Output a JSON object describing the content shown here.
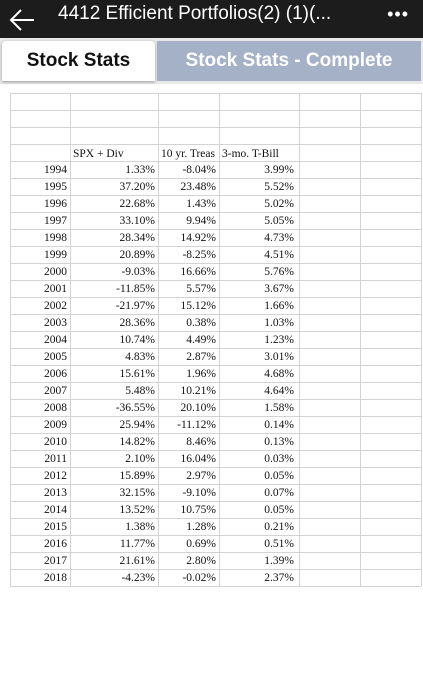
{
  "header": {
    "title": "4412 Efficient Portfolios(2) (1)(...",
    "menu": "•••"
  },
  "tabs": [
    "Stock Stats",
    "Stock Stats - Complete"
  ],
  "table": {
    "columns": [
      "SPX + Div",
      "10 yr. Treas",
      "3-mo. T-Bill"
    ],
    "rows": [
      [
        "1994",
        "1.33%",
        "-8.04%",
        "3.99%"
      ],
      [
        "1995",
        "37.20%",
        "23.48%",
        "5.52%"
      ],
      [
        "1996",
        "22.68%",
        "1.43%",
        "5.02%"
      ],
      [
        "1997",
        "33.10%",
        "9.94%",
        "5.05%"
      ],
      [
        "1998",
        "28.34%",
        "14.92%",
        "4.73%"
      ],
      [
        "1999",
        "20.89%",
        "-8.25%",
        "4.51%"
      ],
      [
        "2000",
        "-9.03%",
        "16.66%",
        "5.76%"
      ],
      [
        "2001",
        "-11.85%",
        "5.57%",
        "3.67%"
      ],
      [
        "2002",
        "-21.97%",
        "15.12%",
        "1.66%"
      ],
      [
        "2003",
        "28.36%",
        "0.38%",
        "1.03%"
      ],
      [
        "2004",
        "10.74%",
        "4.49%",
        "1.23%"
      ],
      [
        "2005",
        "4.83%",
        "2.87%",
        "3.01%"
      ],
      [
        "2006",
        "15.61%",
        "1.96%",
        "4.68%"
      ],
      [
        "2007",
        "5.48%",
        "10.21%",
        "4.64%"
      ],
      [
        "2008",
        "-36.55%",
        "20.10%",
        "1.58%"
      ],
      [
        "2009",
        "25.94%",
        "-11.12%",
        "0.14%"
      ],
      [
        "2010",
        "14.82%",
        "8.46%",
        "0.13%"
      ],
      [
        "2011",
        "2.10%",
        "16.04%",
        "0.03%"
      ],
      [
        "2012",
        "15.89%",
        "2.97%",
        "0.05%"
      ],
      [
        "2013",
        "32.15%",
        "-9.10%",
        "0.07%"
      ],
      [
        "2014",
        "13.52%",
        "10.75%",
        "0.05%"
      ],
      [
        "2015",
        "1.38%",
        "1.28%",
        "0.21%"
      ],
      [
        "2016",
        "11.77%",
        "0.69%",
        "0.51%"
      ],
      [
        "2017",
        "21.61%",
        "2.80%",
        "1.39%"
      ],
      [
        "2018",
        "-4.23%",
        "-0.02%",
        "2.37%"
      ]
    ]
  }
}
